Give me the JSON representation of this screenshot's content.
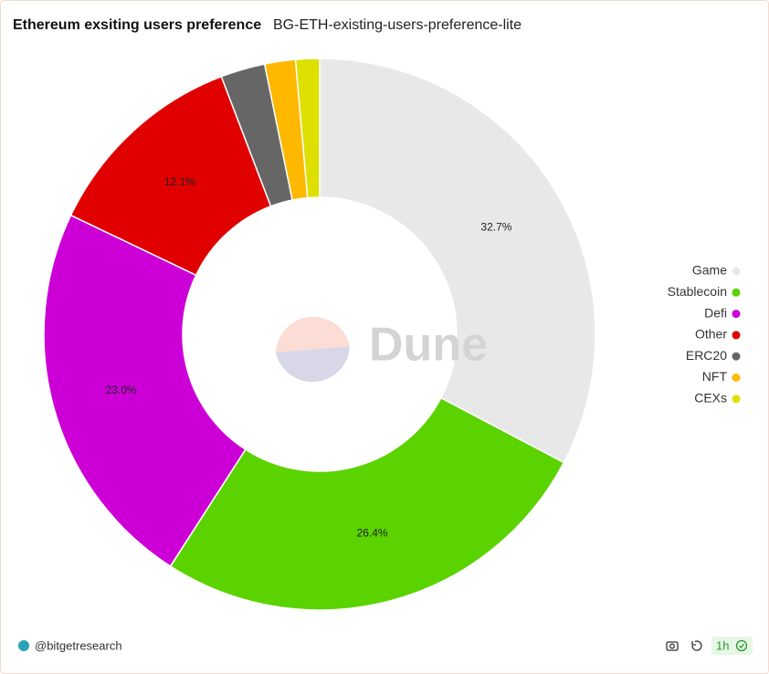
{
  "chart_data": {
    "type": "pie",
    "title": "Ethereum exsiting users preference",
    "subtitle": "BG-ETH-existing-users-preference-lite",
    "categories": [
      "Game",
      "Stablecoin",
      "Defi",
      "Other",
      "ERC20",
      "NFT",
      "CEXs"
    ],
    "values": [
      32.7,
      26.4,
      23.0,
      12.1,
      2.6,
      1.8,
      1.4
    ],
    "value_labels": [
      "32.7%",
      "26.4%",
      "23.0%",
      "12.1%",
      null,
      null,
      null
    ],
    "colors": [
      "#e8e8e8",
      "#5bd300",
      "#cc00d6",
      "#e00000",
      "#666666",
      "#ffb800",
      "#dde000"
    ],
    "legend": "right",
    "watermark": "Dune"
  },
  "footer": {
    "author": "@bitgetresearch",
    "refresh": "1h"
  }
}
